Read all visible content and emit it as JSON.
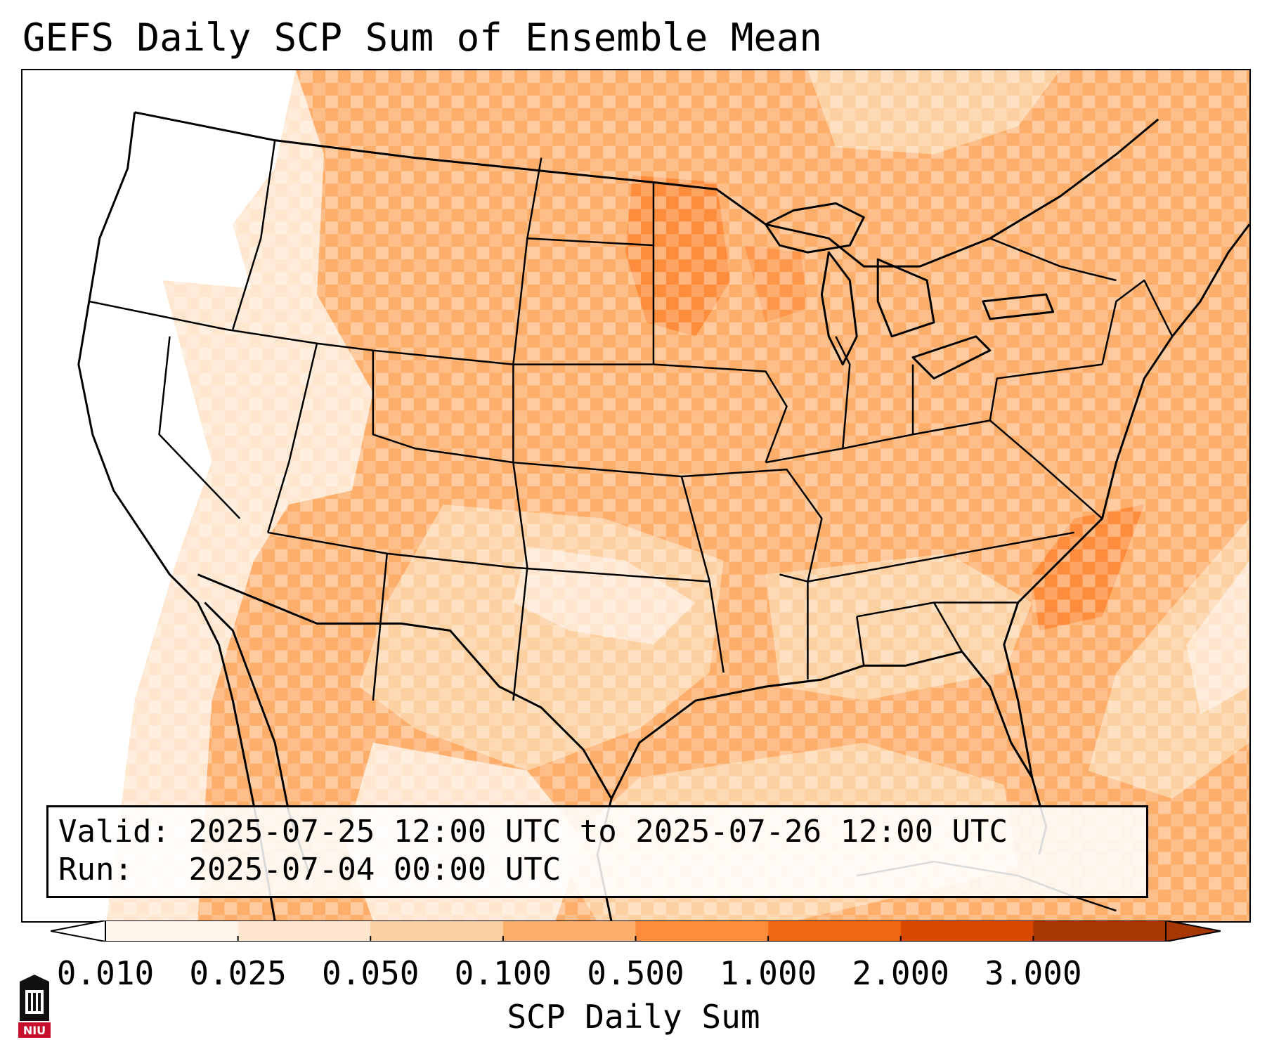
{
  "title": "GEFS Daily SCP Sum of Ensemble Mean",
  "info": {
    "valid_label": "Valid:",
    "valid_value": "2025-07-25 12:00 UTC to 2025-07-26 12:00 UTC",
    "run_label": "Run:",
    "run_value": "2025-07-04 00:00 UTC"
  },
  "colorbar": {
    "label": "SCP Daily Sum",
    "ticks": [
      "0.010",
      "0.025",
      "0.050",
      "0.100",
      "0.500",
      "1.000",
      "2.000",
      "3.000"
    ],
    "colors": [
      "#fff4ea",
      "#fee6cf",
      "#fdd0a2",
      "#fdae6b",
      "#fd8d3c",
      "#f16913",
      "#d94801",
      "#a63603"
    ],
    "under_color": "#ffffff",
    "over_color": "#a63603"
  },
  "logo": {
    "text": "NIU",
    "accent": "#c8102e"
  }
}
